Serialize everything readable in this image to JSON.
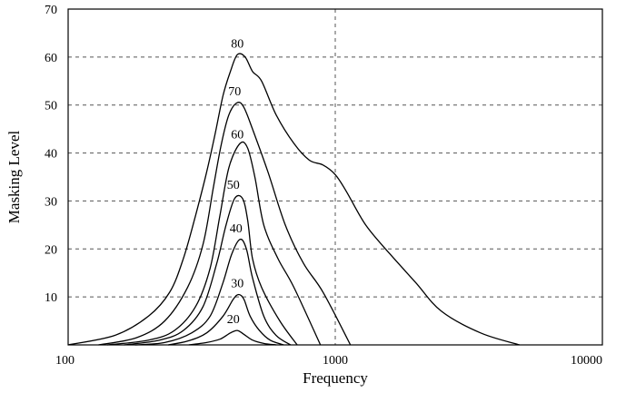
{
  "chart_data": {
    "type": "line",
    "title": "",
    "xlabel": "Frequency",
    "ylabel": "Masking Level",
    "x_scale": "log",
    "xlim": [
      100,
      10000
    ],
    "ylim": [
      0,
      70
    ],
    "x_ticks": [
      100,
      1000,
      10000
    ],
    "x_tick_labels": [
      "100",
      "1000",
      "10000"
    ],
    "y_ticks": [
      10,
      20,
      30,
      40,
      50,
      60,
      70
    ],
    "y_tick_labels": [
      "10",
      "20",
      "30",
      "40",
      "50",
      "60",
      "70"
    ],
    "grid": {
      "horizontal": true,
      "vertical_at": [
        1000
      ],
      "style": "dashed"
    },
    "series": [
      {
        "name": "20",
        "x": [
          283,
          330,
          370,
          405,
          430,
          455,
          490,
          540,
          600
        ],
        "y": [
          0,
          0.5,
          1.2,
          2.5,
          3,
          2.2,
          1,
          0.3,
          0
        ]
      },
      {
        "name": "30",
        "x": [
          237,
          280,
          330,
          380,
          415,
          435,
          455,
          480,
          520,
          570,
          640
        ],
        "y": [
          0,
          0.8,
          2.5,
          6,
          9.5,
          10.5,
          9.5,
          6,
          3,
          1,
          0
        ]
      },
      {
        "name": "40",
        "x": [
          178,
          230,
          290,
          340,
          380,
          410,
          440,
          465,
          490,
          540,
          600,
          680
        ],
        "y": [
          0,
          0.5,
          2.5,
          6,
          13,
          19,
          22,
          20,
          14,
          6,
          2,
          0
        ]
      },
      {
        "name": "50",
        "x": [
          162,
          220,
          270,
          320,
          360,
          390,
          420,
          450,
          470,
          490,
          530,
          620,
          720
        ],
        "y": [
          0,
          1,
          3,
          8,
          17,
          25,
          30.5,
          30.5,
          26,
          18,
          12,
          5,
          0
        ]
      },
      {
        "name": "60",
        "x": [
          140,
          200,
          250,
          300,
          340,
          370,
          400,
          440,
          470,
          500,
          540,
          610,
          700,
          880
        ],
        "y": [
          0,
          1,
          3,
          8,
          16,
          27,
          37,
          42,
          41,
          35,
          25,
          18,
          12,
          0
        ]
      },
      {
        "name": "70",
        "x": [
          130,
          180,
          230,
          280,
          320,
          350,
          375,
          400,
          430,
          455,
          490,
          560,
          650,
          760,
          900,
          1140
        ],
        "y": [
          0,
          1.5,
          5,
          12,
          21,
          33,
          42,
          48,
          50.5,
          49.5,
          45,
          36,
          25,
          17,
          11,
          0
        ]
      },
      {
        "name": "80",
        "x": [
          100,
          150,
          200,
          240,
          270,
          300,
          330,
          355,
          380,
          405,
          430,
          460,
          490,
          530,
          600,
          700,
          800,
          900,
          1000,
          1100,
          1300,
          1600,
          2000,
          2500,
          3500,
          4900
        ],
        "y": [
          0,
          2,
          6,
          11,
          18,
          27,
          36,
          44,
          52,
          57,
          60.5,
          60,
          57,
          55,
          48,
          42,
          38.5,
          37.5,
          35.5,
          32,
          25,
          19,
          13,
          7,
          2.5,
          0
        ]
      }
    ],
    "annotations": [
      {
        "text": "80",
        "x": 430,
        "y": 62
      },
      {
        "text": "70",
        "x": 420,
        "y": 52
      },
      {
        "text": "60",
        "x": 430,
        "y": 43
      },
      {
        "text": "50",
        "x": 415,
        "y": 32.5
      },
      {
        "text": "40",
        "x": 425,
        "y": 23.5
      },
      {
        "text": "30",
        "x": 430,
        "y": 12
      },
      {
        "text": "20",
        "x": 415,
        "y": 4.5
      }
    ],
    "legend": "none"
  }
}
